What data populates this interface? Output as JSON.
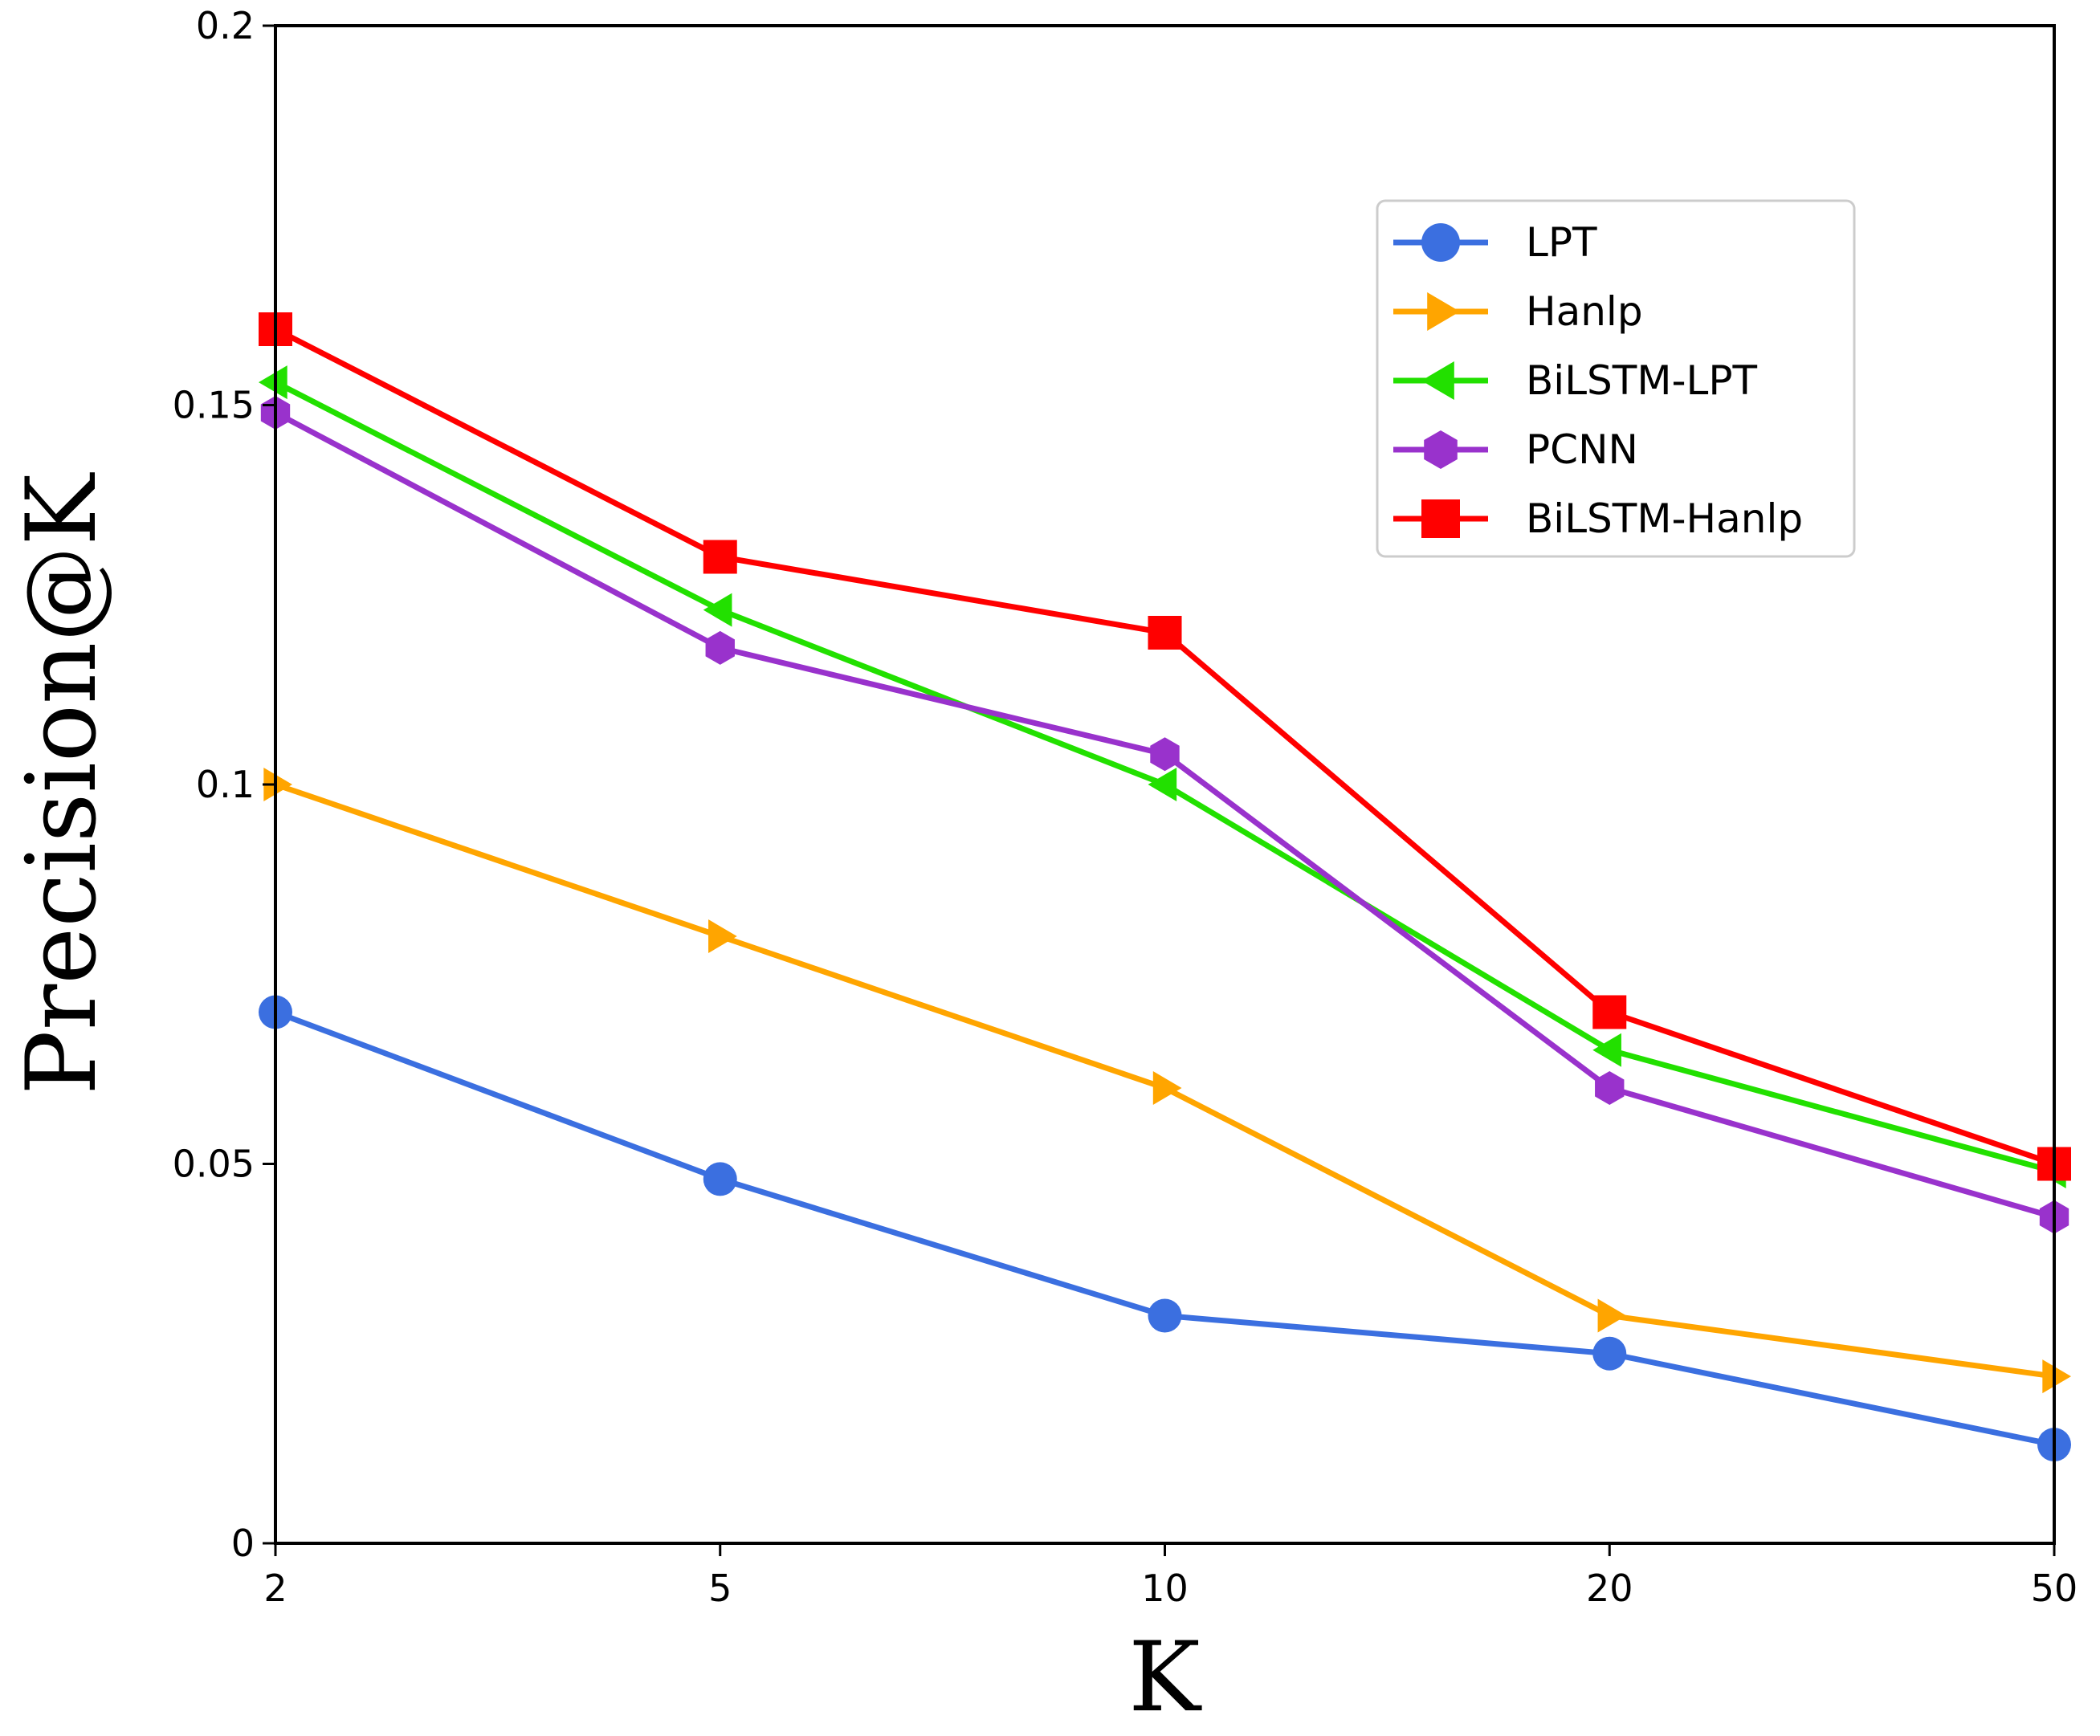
{
  "chart_data": {
    "type": "line",
    "title": "",
    "xlabel": "K",
    "ylabel": "Precision@K",
    "categories": [
      "2",
      "5",
      "10",
      "20",
      "50"
    ],
    "yticks": [
      "0",
      "0.05",
      "0.1",
      "0.15",
      "0.2"
    ],
    "ylim": [
      0,
      0.2
    ],
    "grid": false,
    "legend_position": "top-right",
    "series": [
      {
        "name": "LPT",
        "values": [
          0.07,
          0.048,
          0.03,
          0.025,
          0.013
        ],
        "color": "#3b6fe0",
        "marker": "circle"
      },
      {
        "name": "Hanlp",
        "values": [
          0.1,
          0.08,
          0.06,
          0.03,
          0.022
        ],
        "color": "#ffa500",
        "marker": "triangle-right"
      },
      {
        "name": "BiLSTM-LPT",
        "values": [
          0.153,
          0.123,
          0.1,
          0.065,
          0.049
        ],
        "color": "#22e000",
        "marker": "triangle-left"
      },
      {
        "name": "PCNN",
        "values": [
          0.149,
          0.118,
          0.104,
          0.06,
          0.043
        ],
        "color": "#9932cc",
        "marker": "hexagon"
      },
      {
        "name": "BiLSTM-Hanlp",
        "values": [
          0.16,
          0.13,
          0.12,
          0.07,
          0.05
        ],
        "color": "#ff0000",
        "marker": "square"
      }
    ]
  }
}
